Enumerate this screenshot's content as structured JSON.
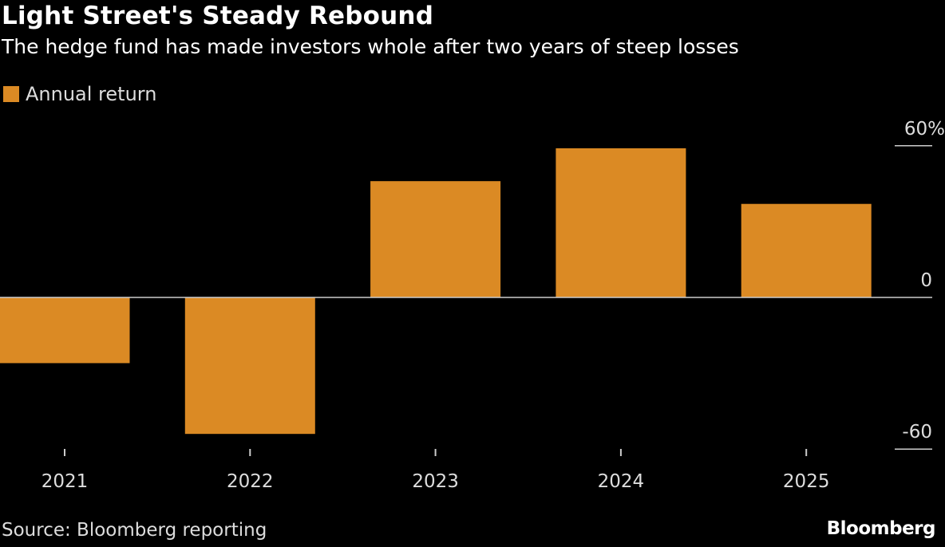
{
  "title": "Light Street's Steady Rebound",
  "subtitle": "The hedge fund has made investors whole after two years of steep losses",
  "source": "Source: Bloomberg reporting",
  "logo": "Bloomberg",
  "chart_data": {
    "type": "bar",
    "title": "Light Street's Steady Rebound",
    "subtitle": "The hedge fund has made investors whole after two years of steep losses",
    "categories": [
      "2021",
      "2022",
      "2023",
      "2024",
      "2025"
    ],
    "series": [
      {
        "name": "Annual return",
        "values": [
          -26,
          -54,
          46,
          59,
          37
        ],
        "color": "#db8a24"
      }
    ],
    "yticks": [
      60,
      0,
      -60
    ],
    "ytick_labels": [
      "60%",
      "0",
      "-60"
    ],
    "ylim": [
      -60,
      60
    ],
    "unit": "%",
    "y_axis_side": "right",
    "legend_placement": "top-left",
    "grid": false,
    "background": "#000000"
  }
}
